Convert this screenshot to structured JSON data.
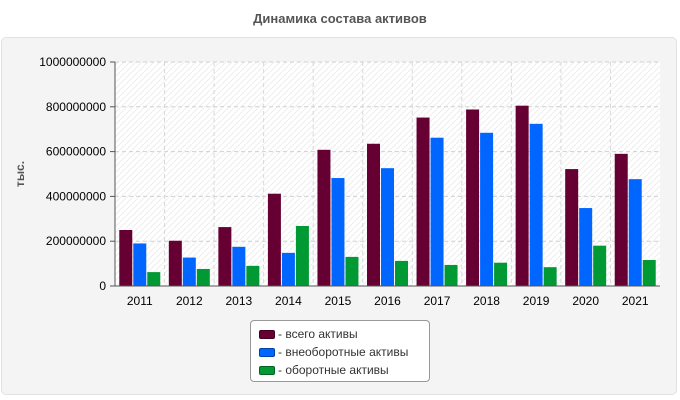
{
  "chart_data": {
    "type": "bar",
    "title": "Динамика состава активов",
    "ylabel": "тыс.",
    "xlabel": "",
    "categories": [
      "2011",
      "2012",
      "2013",
      "2014",
      "2015",
      "2016",
      "2017",
      "2018",
      "2019",
      "2020",
      "2021"
    ],
    "ylim": [
      0,
      1000000000
    ],
    "yticks": [
      "0",
      "200000000",
      "400000000",
      "600000000",
      "800000000",
      "1000000000"
    ],
    "grid": true,
    "legend_position": "bottom",
    "series": [
      {
        "name": "- всего активы",
        "color": "#660033",
        "values": [
          250000000,
          202000000,
          263000000,
          412000000,
          608000000,
          635000000,
          752000000,
          788000000,
          805000000,
          522000000,
          590000000
        ]
      },
      {
        "name": "- внеоборотные активы",
        "color": "#0066ff",
        "values": [
          190000000,
          127000000,
          175000000,
          148000000,
          482000000,
          526000000,
          662000000,
          684000000,
          724000000,
          348000000,
          477000000
        ]
      },
      {
        "name": "- оборотные активы",
        "color": "#009933",
        "values": [
          62000000,
          76000000,
          90000000,
          268000000,
          130000000,
          112000000,
          94000000,
          104000000,
          84000000,
          180000000,
          116000000
        ]
      }
    ]
  }
}
